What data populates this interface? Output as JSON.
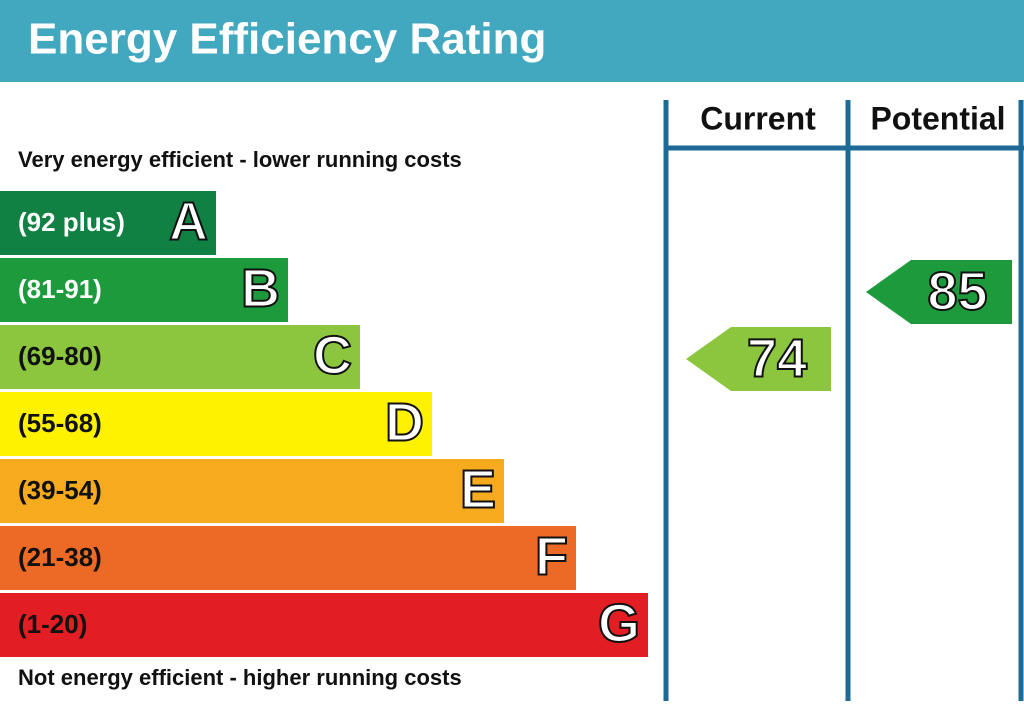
{
  "title": "Energy Efficiency Rating",
  "columns": [
    "Current",
    "Potential"
  ],
  "top_note": "Very energy efficient - lower running costs",
  "bottom_note": "Not energy efficient - higher running costs",
  "bands": [
    {
      "range": "(92 plus)",
      "letter": "A",
      "color": "#108043",
      "text_color": "#ffffff"
    },
    {
      "range": "(81-91)",
      "letter": "B",
      "color": "#1c9a3c",
      "text_color": "#ffffff"
    },
    {
      "range": "(69-80)",
      "letter": "C",
      "color": "#8cc63f",
      "text_color": "#111111"
    },
    {
      "range": "(55-68)",
      "letter": "D",
      "color": "#fff200",
      "text_color": "#111111"
    },
    {
      "range": "(39-54)",
      "letter": "E",
      "color": "#f6ab1f",
      "text_color": "#111111"
    },
    {
      "range": "(21-38)",
      "letter": "F",
      "color": "#ec6a25",
      "text_color": "#111111"
    },
    {
      "range": "(1-20)",
      "letter": "G",
      "color": "#e21d24",
      "text_color": "#111111"
    }
  ],
  "current": 74,
  "potential": 85
}
